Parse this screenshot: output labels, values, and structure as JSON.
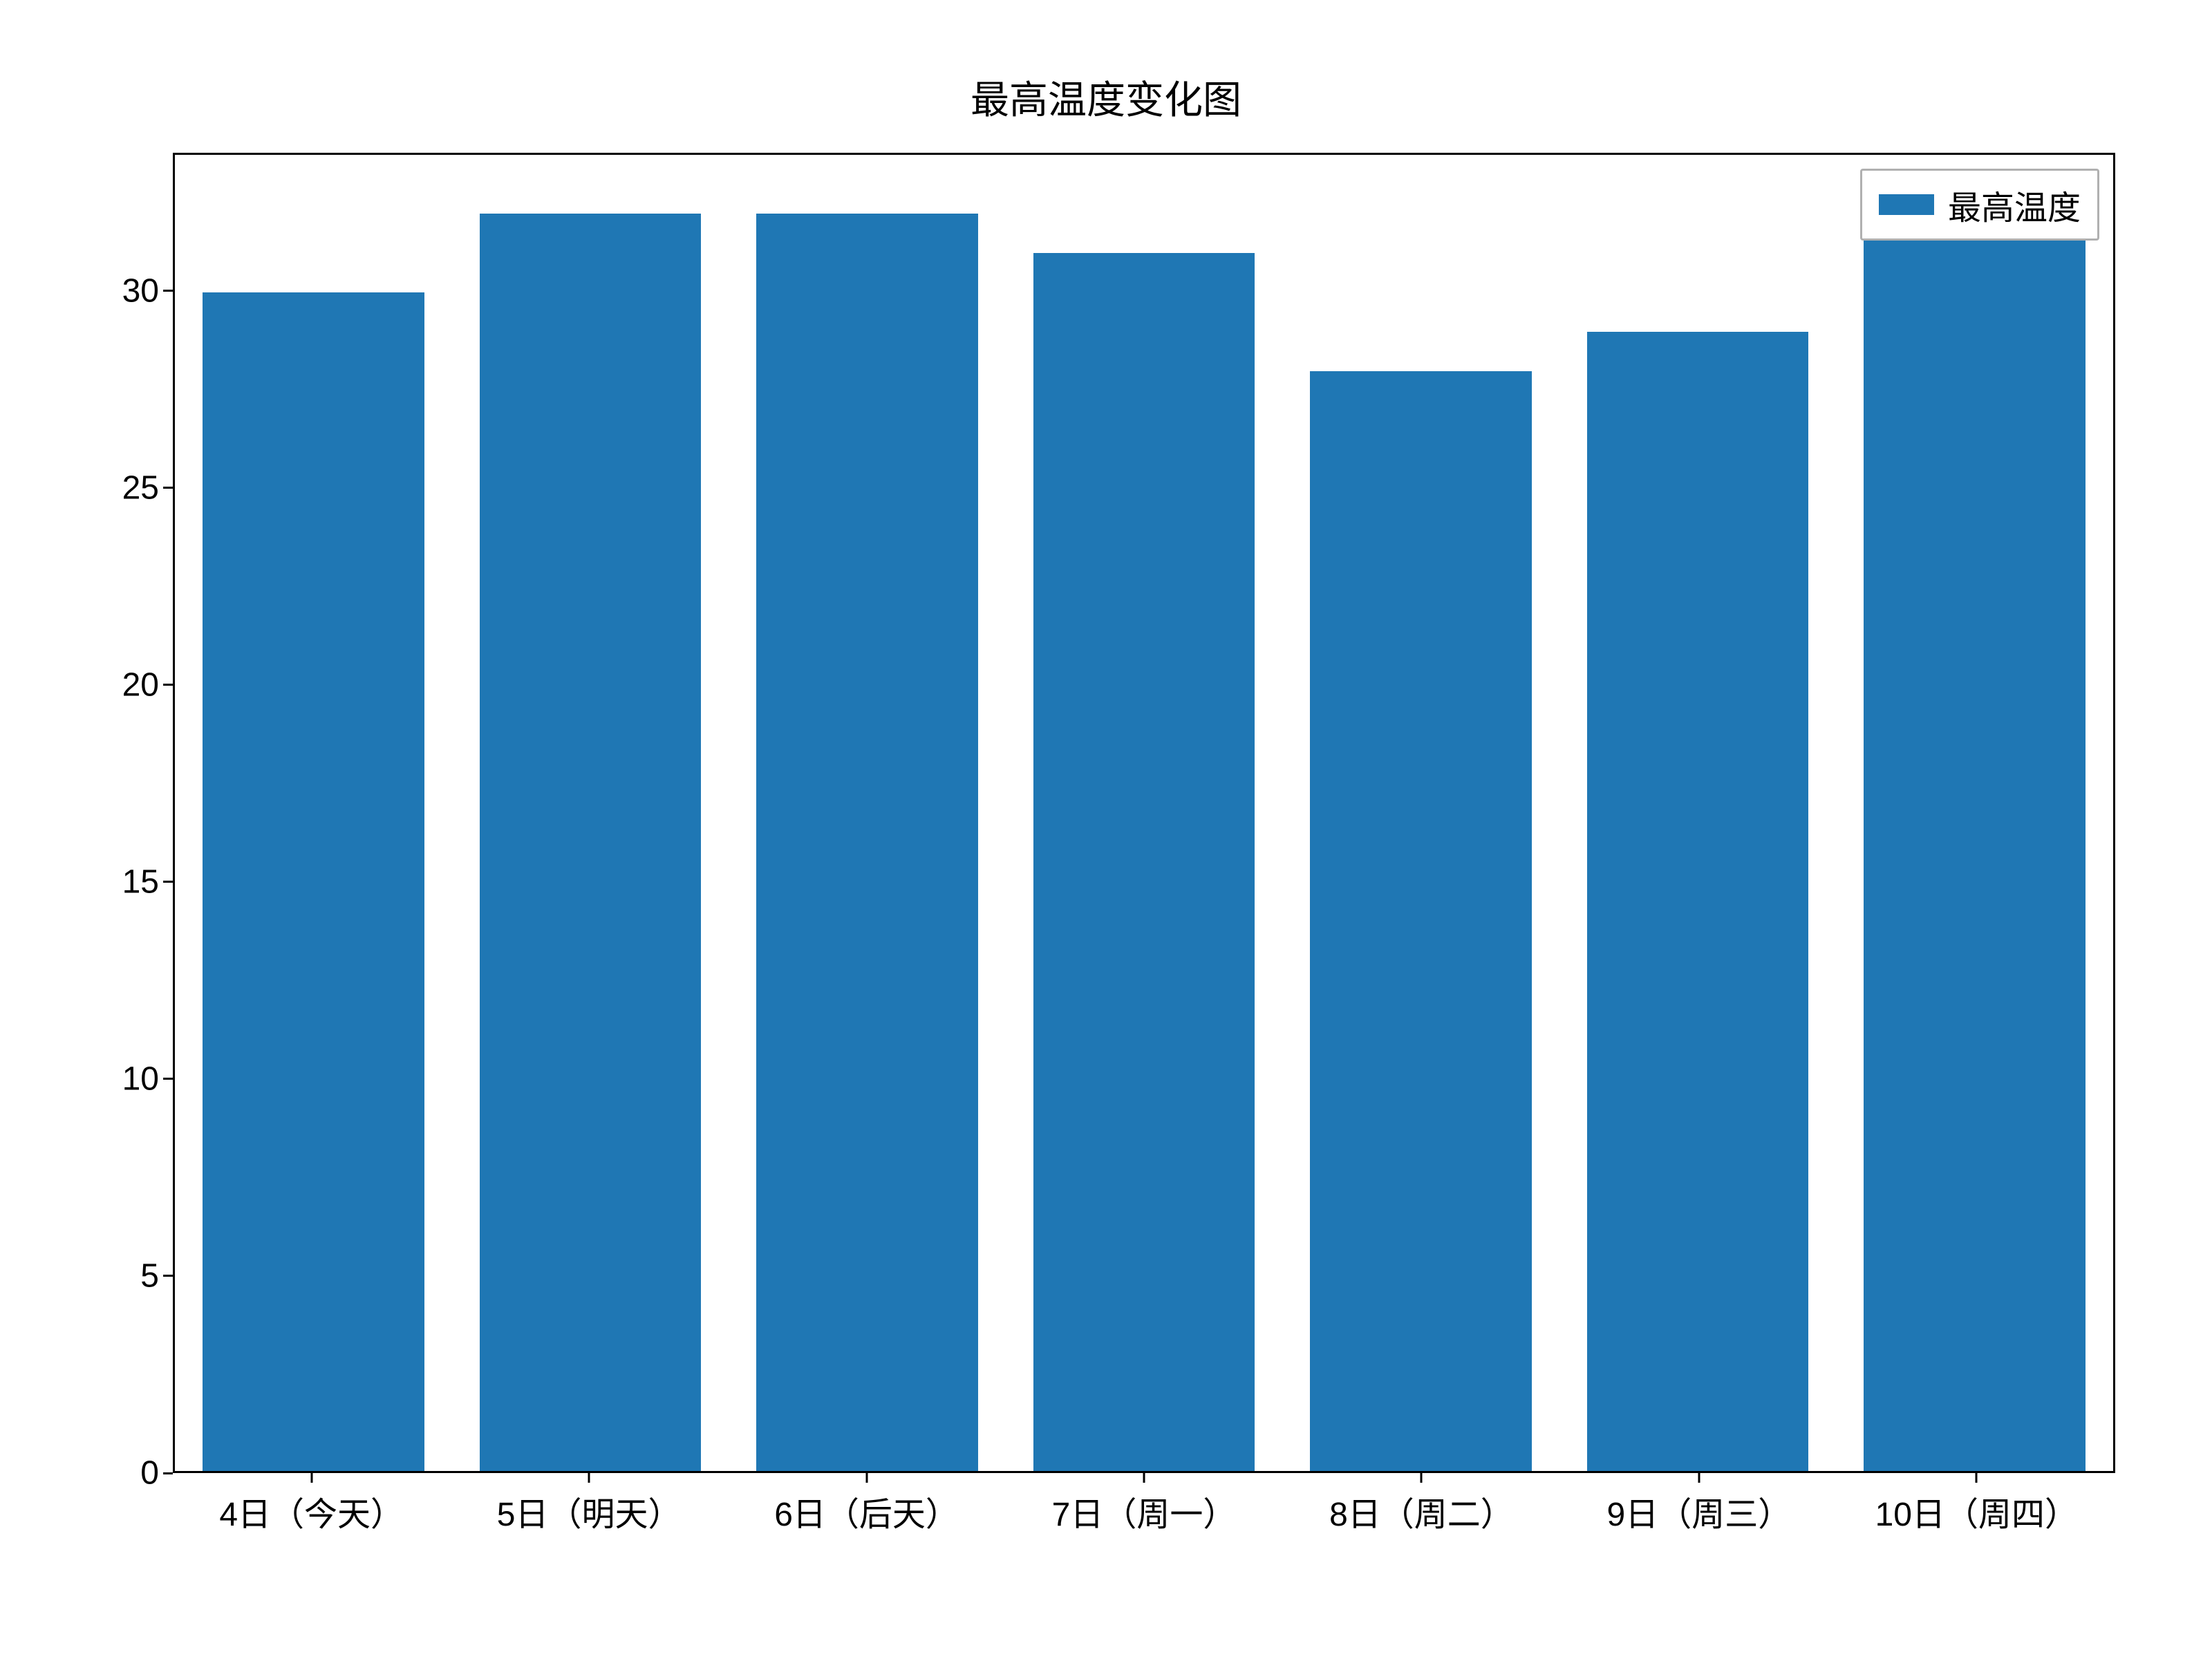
{
  "chart": {
    "type": "bar",
    "title": "最高温度变化图",
    "title_fontsize": 56,
    "title_color": "#000000",
    "categories": [
      "4日（今天）",
      "5日（明天）",
      "6日（后天）",
      "7日（周一）",
      "8日（周二）",
      "9日（周三）",
      "10日（周四）"
    ],
    "values": [
      30,
      32,
      32,
      31,
      28,
      29,
      32
    ],
    "bar_color": "#1f77b4",
    "bar_width_ratio": 0.8,
    "background_color": "#ffffff",
    "border_color": "#000000",
    "border_width": 3,
    "ylim": [
      0,
      33.5
    ],
    "yticks": [
      0,
      5,
      10,
      15,
      20,
      25,
      30
    ],
    "ytick_fontsize": 48,
    "xtick_fontsize": 48,
    "tick_color": "#000000",
    "legend": {
      "label": "最高温度",
      "position": "upper right",
      "fontsize": 48,
      "swatch_color": "#1f77b4",
      "border_color": "#b0b0b0",
      "background_color": "#ffffff"
    }
  }
}
